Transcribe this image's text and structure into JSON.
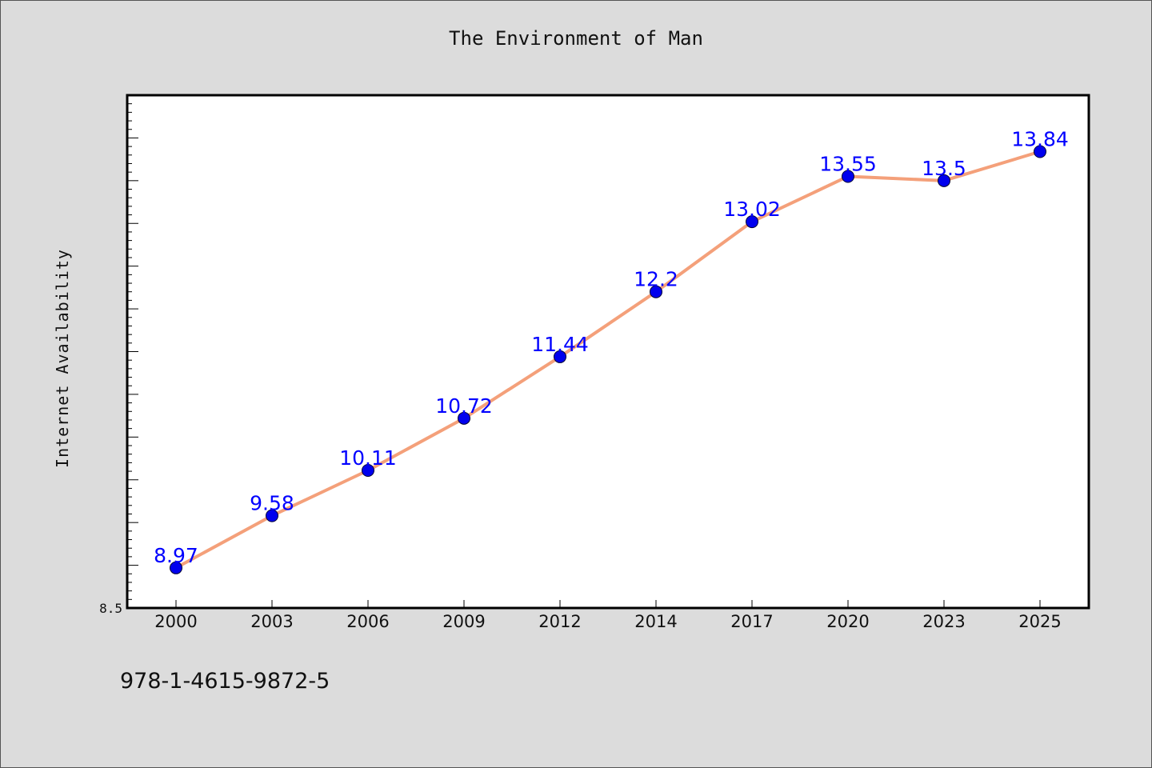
{
  "page": {
    "isbn": "978-1-4615-9872-5"
  },
  "chart_data": {
    "type": "line",
    "title": "The Environment of Man",
    "xlabel": "",
    "ylabel": "Internet Availability",
    "categories": [
      "2000",
      "2003",
      "2006",
      "2009",
      "2012",
      "2014",
      "2017",
      "2020",
      "2023",
      "2025"
    ],
    "series": [
      {
        "values": [
          8.97,
          9.58,
          10.11,
          10.72,
          11.44,
          12.2,
          13.02,
          13.55,
          13.5,
          13.84
        ]
      }
    ],
    "data_labels": [
      "8.97",
      "9.58",
      "10.11",
      "10.72",
      "11.44",
      "12.2",
      "13.02",
      "13.55",
      "13.5",
      "13.84"
    ],
    "ylim": [
      8.5,
      14.5
    ],
    "y_tick_labels": [
      "8.5"
    ],
    "grid": false,
    "line_color": "#f4a07a",
    "marker_color": "#0000ee",
    "label_color": "#0000ff"
  }
}
